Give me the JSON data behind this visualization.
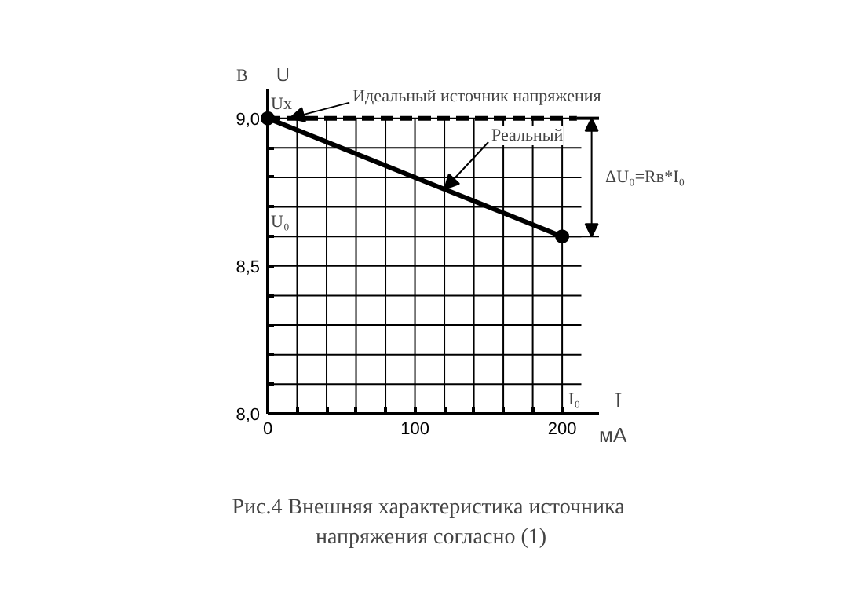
{
  "chart_data": {
    "type": "line",
    "title": "Рис.4  Внешняя характеристика источника\nнапряжения согласно (1)",
    "xlabel": "I",
    "ylabel": "U",
    "xlim": [
      0,
      225
    ],
    "ylim": [
      8.0,
      9.1
    ],
    "xticks": [
      0,
      {
        "value": 20,
        "label": null
      },
      {
        "value": 40,
        "label": null
      },
      {
        "value": 60,
        "label": null
      },
      {
        "value": 80,
        "label": null
      },
      100,
      {
        "value": 120,
        "label": null
      },
      {
        "value": 140,
        "label": null
      },
      {
        "value": 160,
        "label": null
      },
      {
        "value": 180,
        "label": null
      },
      200
    ],
    "yticks": [
      {
        "value": 8.0,
        "label": "8,0"
      },
      {
        "value": 8.1,
        "label": null
      },
      {
        "value": 8.2,
        "label": null
      },
      {
        "value": 8.3,
        "label": null
      },
      {
        "value": 8.4,
        "label": null
      },
      {
        "value": 8.5,
        "label": "8,5"
      },
      {
        "value": 8.6,
        "label": null
      },
      {
        "value": 8.7,
        "label": null
      },
      {
        "value": 8.8,
        "label": null
      },
      {
        "value": 8.9,
        "label": null
      },
      {
        "value": 9.0,
        "label": "9,0"
      }
    ],
    "grid": true,
    "series": [
      {
        "color": "#000000",
        "x": [
          0,
          210
        ],
        "values": [
          9.0,
          9.0
        ],
        "line_style": "dashed"
      },
      {
        "color": "#000000",
        "x": [
          0,
          200
        ],
        "values": [
          9.0,
          8.6
        ],
        "line_style": "solid",
        "marker": "circle"
      }
    ],
    "annotations": [
      {
        "text": "Идеальный источник напряжения",
        "x": 15,
        "y": 9.0
      },
      {
        "text": "Реальный",
        "x": 120,
        "y": 8.76
      },
      "ΔU₀=Rв*I₀",
      {
        "text": "Uх",
        "x": 0,
        "y": 9.0
      },
      "U₀",
      "I₀",
      "В",
      "мА"
    ]
  }
}
